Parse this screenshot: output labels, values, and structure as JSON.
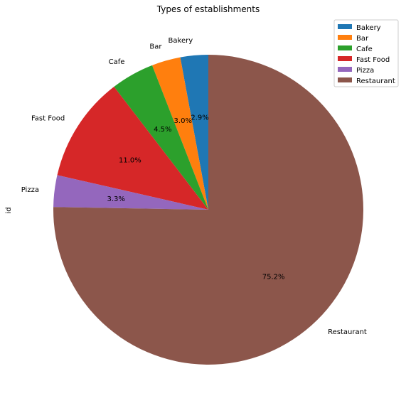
{
  "chart_data": {
    "type": "pie",
    "title": "Types of establishments",
    "ylabel": "id",
    "categories": [
      "Bakery",
      "Bar",
      "Cafe",
      "Fast Food",
      "Pizza",
      "Restaurant"
    ],
    "values": [
      2.9,
      3.0,
      4.5,
      11.0,
      3.3,
      75.2
    ],
    "autopct_labels": [
      "2.9%",
      "3.0%",
      "4.5%",
      "11.0%",
      "3.3%",
      "75.2%"
    ],
    "colors": [
      "#1f77b4",
      "#ff7f0e",
      "#2ca02c",
      "#d62728",
      "#9467bd",
      "#8c564b"
    ],
    "start_angle_deg": 90,
    "direction": "counterclockwise",
    "legend": {
      "position": "top-right",
      "entries": [
        "Bakery",
        "Bar",
        "Cafe",
        "Fast Food",
        "Pizza",
        "Restaurant"
      ]
    }
  }
}
